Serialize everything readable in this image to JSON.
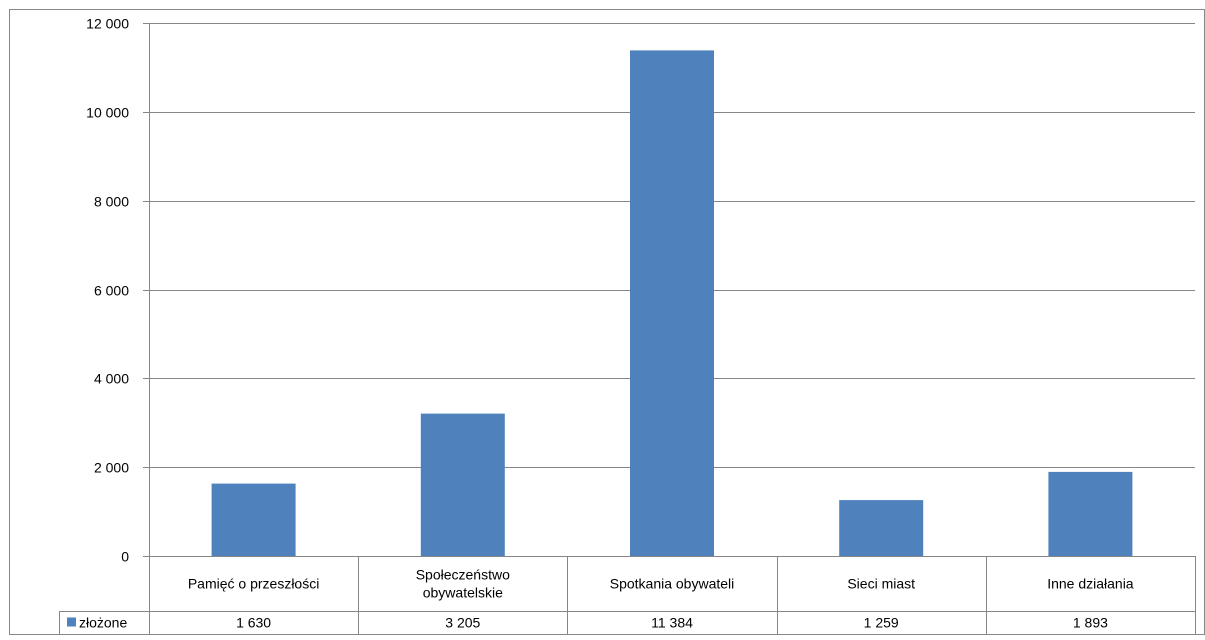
{
  "chart_data": {
    "type": "bar",
    "categories": [
      [
        "Pamięć o przeszłości"
      ],
      [
        "Społeczeństwo",
        "obywatelskie"
      ],
      [
        "Spotkania obywateli"
      ],
      [
        "Sieci miast"
      ],
      [
        "Inne działania"
      ]
    ],
    "series": [
      {
        "name": "złożone",
        "values": [
          1630,
          3205,
          11384,
          1259,
          1893
        ],
        "value_labels": [
          "1 630",
          "3 205",
          "11 384",
          "1 259",
          "1 893"
        ],
        "color": "#4F81BD"
      }
    ],
    "ylim": [
      0,
      12000
    ],
    "yticks": [
      0,
      2000,
      4000,
      6000,
      8000,
      10000,
      12000
    ],
    "ytick_labels": [
      "0",
      "2 000",
      "4 000",
      "6 000",
      "8 000",
      "10 000",
      "12 000"
    ],
    "grid": true,
    "legend": "data-table",
    "data_table": true
  },
  "colors": {
    "bar": "#4F81BD",
    "grid": "#868686",
    "frame": "#868686"
  }
}
